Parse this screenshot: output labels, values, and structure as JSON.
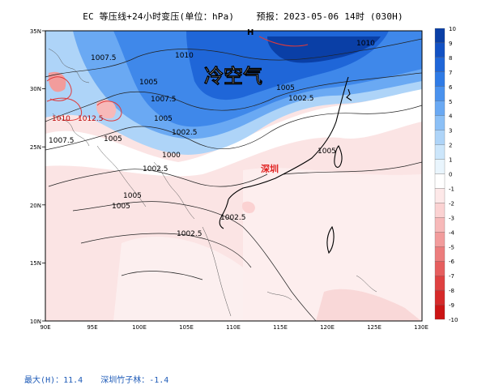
{
  "title": "EC 等压线+24小时变压(单位：hPa)    预报：2023-05-06 14时 (030H)",
  "annotation_main": "冷空气",
  "annotation_city": "深圳",
  "high_marker": "H",
  "lat_labels": [
    "35N",
    "30N",
    "25N",
    "20N",
    "15N",
    "10N"
  ],
  "lon_labels": [
    "90E",
    "95E",
    "100E",
    "105E",
    "110E",
    "115E",
    "120E",
    "125E",
    "130E"
  ],
  "contour_labels": [
    "1007.5",
    "1010",
    "1005",
    "1007.5",
    "1010",
    "1012.5",
    "1005",
    "1002.5",
    "1007.5",
    "1005",
    "1000",
    "1002.5",
    "1005",
    "1005",
    "1002.5",
    "1002.5",
    "1005",
    "1002.5",
    "1010",
    "1005"
  ],
  "colorbar": {
    "labels": [
      "10",
      "9",
      "8",
      "7",
      "6",
      "5",
      "4",
      "3",
      "2",
      "1",
      "0",
      "-1",
      "-2",
      "-3",
      "-4",
      "-5",
      "-6",
      "-7",
      "-8",
      "-9",
      "-10"
    ],
    "colors": [
      "#0a3fa6",
      "#1251c4",
      "#1f66d8",
      "#2f7be6",
      "#4a92ee",
      "#6aa9f3",
      "#8cc0f6",
      "#aed4f8",
      "#cce6fb",
      "#e9f5fd",
      "#ffffff",
      "#fde8e8",
      "#fbd2d2",
      "#f7b9b9",
      "#f29c9c",
      "#ec7d7d",
      "#e65e5e",
      "#df4141",
      "#d62a2a",
      "#cc1515"
    ]
  },
  "footer": {
    "max_label": "最大(H)：11.4",
    "site_label": "深圳竹子林：-1.4"
  }
}
